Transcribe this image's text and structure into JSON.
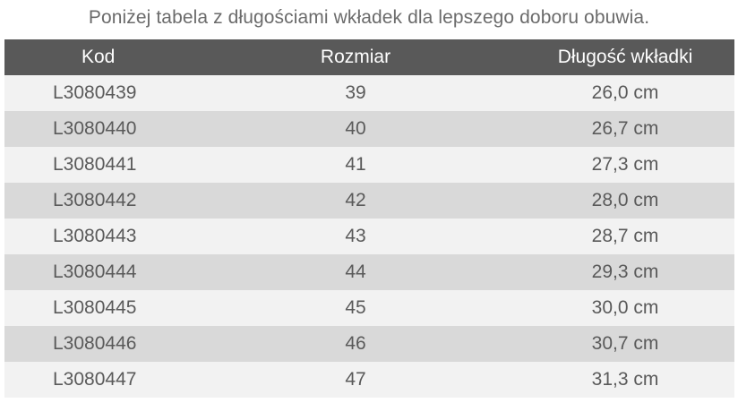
{
  "intro": "Poniżej tabela z długościami wkładek dla lepszego doboru obuwia.",
  "table": {
    "headers": [
      "Kod",
      "Rozmiar",
      "Długość wkładki"
    ],
    "rows": [
      [
        "L3080439",
        "39",
        "26,0 cm"
      ],
      [
        "L3080440",
        "40",
        "26,7 cm"
      ],
      [
        "L3080441",
        "41",
        "27,3 cm"
      ],
      [
        "L3080442",
        "42",
        "28,0 cm"
      ],
      [
        "L3080443",
        "43",
        "28,7 cm"
      ],
      [
        "L3080444",
        "44",
        "29,3 cm"
      ],
      [
        "L3080445",
        "45",
        "30,0 cm"
      ],
      [
        "L3080446",
        "46",
        "30,7 cm"
      ],
      [
        "L3080447",
        "47",
        "31,3 cm"
      ]
    ]
  },
  "colors": {
    "header_bg": "#595959",
    "row_light": "#f2f2f2",
    "row_dark": "#d9d9d9"
  }
}
